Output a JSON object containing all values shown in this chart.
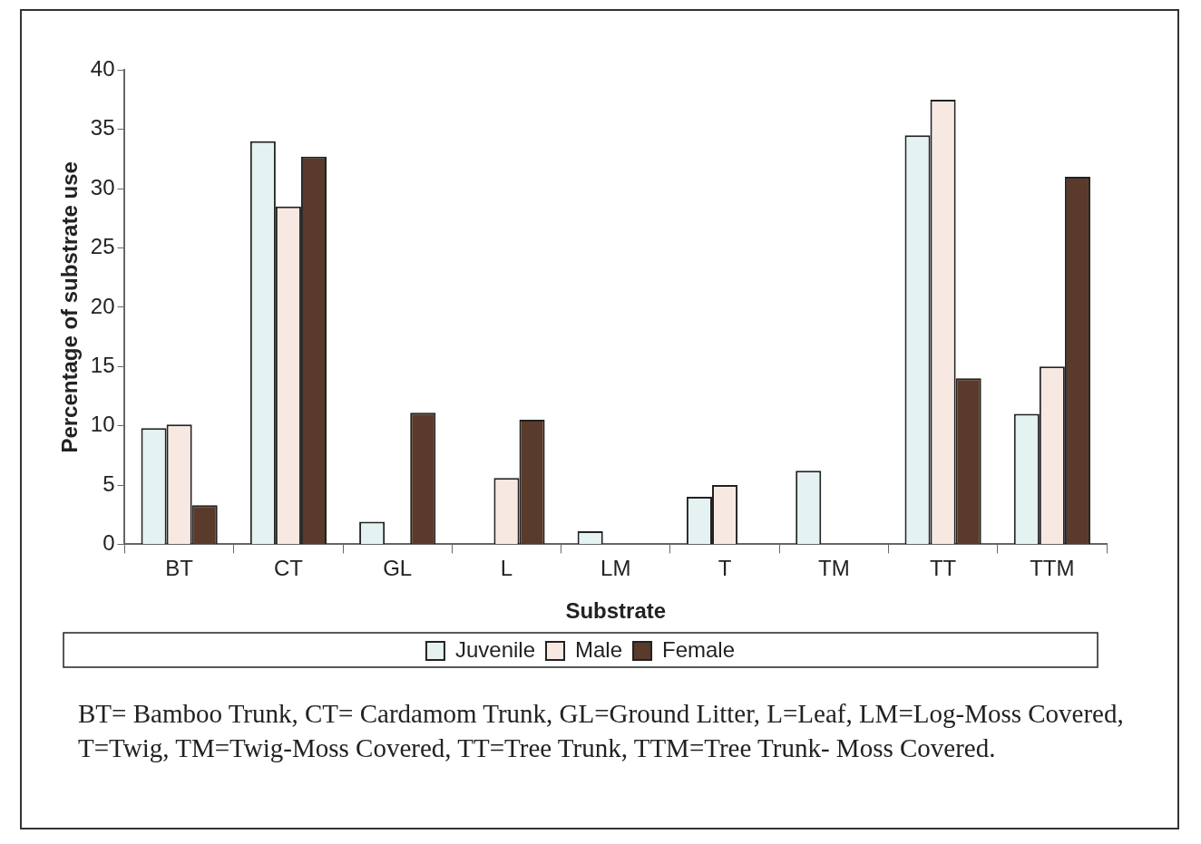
{
  "chart_data": {
    "type": "bar",
    "xlabel": "Substrate",
    "ylabel": "Percentage of substrate use",
    "categories": [
      "BT",
      "CT",
      "GL",
      "L",
      "LM",
      "T",
      "TM",
      "TT",
      "TTM"
    ],
    "series": [
      {
        "name": "Juvenile",
        "color": "#e4f3f1",
        "values": [
          9.8,
          34,
          1.9,
          0,
          1.1,
          4,
          6.2,
          34.5,
          11
        ]
      },
      {
        "name": "Male",
        "color": "#f7e9e2",
        "values": [
          10.1,
          28.5,
          0,
          5.6,
          0,
          5,
          0,
          37.5,
          15
        ]
      },
      {
        "name": "Female",
        "color": "#5a3a2a",
        "values": [
          3.3,
          32.7,
          11.1,
          10.5,
          0,
          0,
          0,
          14,
          31
        ]
      }
    ],
    "ylim": [
      0,
      40
    ],
    "yticks": [
      0,
      5,
      10,
      15,
      20,
      25,
      30,
      35,
      40
    ],
    "grid": false,
    "legend": "bottom",
    "annotations": [
      "BT= Bamboo Trunk, CT= Cardamom Trunk, GL=Ground Litter, L=Leaf, LM=Log-Moss Covered, T=Twig, TM=Twig-Moss Covered, TT=Tree Trunk, TTM=Tree Trunk- Moss Covered."
    ]
  }
}
